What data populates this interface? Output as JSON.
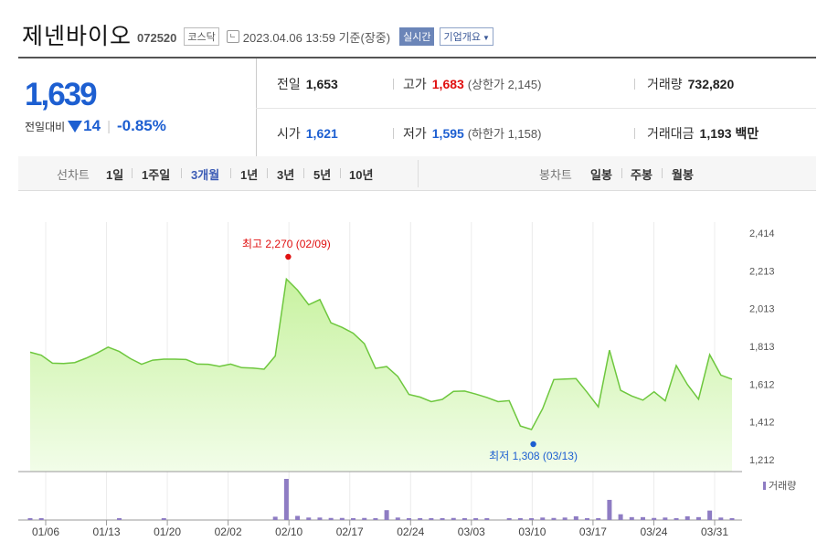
{
  "header": {
    "company": "제넨바이오",
    "code": "072520",
    "market_badge": "코스닥",
    "timestamp": "2023.04.06 13:59 기준(장중)",
    "realtime_button": "실시간",
    "company_info_button": "기업개요"
  },
  "quote": {
    "price": "1,639",
    "change_label": "전일대비",
    "change": "14",
    "change_pct": "-0.85%",
    "prev_close_label": "전일",
    "prev_close": "1,653",
    "open_label": "시가",
    "open": "1,621",
    "high_label": "고가",
    "high": "1,683",
    "upper_limit_label": "상한가",
    "upper_limit": "2,145",
    "low_label": "저가",
    "low": "1,595",
    "lower_limit_label": "하한가",
    "lower_limit": "1,158",
    "volume_label": "거래량",
    "volume": "732,820",
    "value_label": "거래대금",
    "value": "1,193",
    "value_unit": "백만"
  },
  "chart_tabs": {
    "line_label": "선차트",
    "line_periods": [
      "1일",
      "1주일",
      "3개월",
      "1년",
      "3년",
      "5년",
      "10년"
    ],
    "selected": "3개월",
    "candle_label": "봉차트",
    "candle_periods": [
      "일봉",
      "주봉",
      "월봉"
    ]
  },
  "colors": {
    "up": "#e01010",
    "down": "#1d5fd1",
    "area_top": "#ccf5a8",
    "line": "#6ec73e",
    "volume_bar": "#8e7cc3"
  },
  "chart_data": {
    "type": "area",
    "y_ticks": [
      "2,414",
      "2,213",
      "2,013",
      "1,813",
      "1,612",
      "1,412",
      "1,212"
    ],
    "ylim": [
      1212,
      2414
    ],
    "x_labels": [
      "01/06",
      "01/13",
      "01/20",
      "02/02",
      "02/10",
      "02/17",
      "02/24",
      "03/03",
      "03/10",
      "03/17",
      "03/24",
      "03/31"
    ],
    "max_annotation": "최고 2,270 (02/09)",
    "min_annotation": "최저 1,308 (03/13)",
    "legend": "거래량",
    "series": [
      {
        "values": [
          1782,
          1766,
          1724,
          1722,
          1727,
          1750,
          1777,
          1809,
          1786,
          1748,
          1718,
          1740,
          1745,
          1745,
          1743,
          1719,
          1718,
          1707,
          1719,
          1700,
          1698,
          1692,
          1762,
          2170,
          2111,
          2034,
          2061,
          1938,
          1914,
          1883,
          1827,
          1696,
          1706,
          1653,
          1558,
          1544,
          1520,
          1532,
          1574,
          1576,
          1560,
          1542,
          1520,
          1525,
          1391,
          1372,
          1483,
          1637,
          1640,
          1642,
          1569,
          1492,
          1793,
          1580,
          1550,
          1528,
          1572,
          1524,
          1711,
          1611,
          1533,
          1769,
          1661,
          1639
        ]
      }
    ],
    "volume": [
      0.04,
      0.03,
      0,
      0,
      0,
      0,
      0,
      0,
      0.03,
      0,
      0,
      0,
      0.02,
      0,
      0,
      0,
      0,
      0,
      0,
      0,
      0,
      0,
      0.08,
      1.0,
      0.1,
      0.06,
      0.06,
      0.05,
      0.05,
      0.04,
      0.05,
      0.04,
      0.24,
      0.06,
      0.04,
      0.03,
      0.04,
      0.04,
      0.05,
      0.04,
      0.03,
      0.03,
      0,
      0.03,
      0.03,
      0.04,
      0.06,
      0.05,
      0.06,
      0.09,
      0.03,
      0.03,
      0.49,
      0.14,
      0.07,
      0.07,
      0.05,
      0.06,
      0.04,
      0.09,
      0.07,
      0.23,
      0.06,
      0.03
    ]
  }
}
